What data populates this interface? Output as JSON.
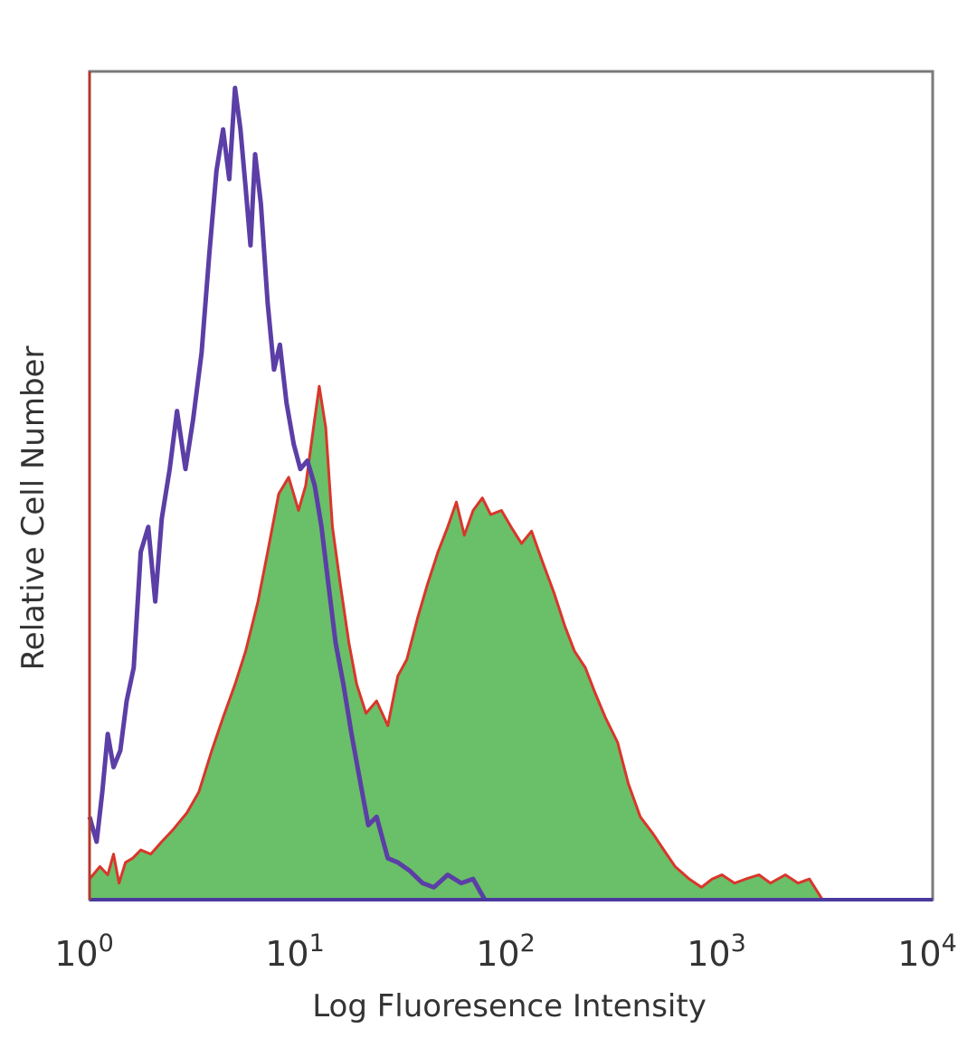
{
  "chart_data": {
    "type": "area",
    "title": "",
    "xlabel": "Log Fluoresence Intensity",
    "ylabel": "Relative Cell Number",
    "x_scale": "log",
    "xlim": [
      1,
      10000
    ],
    "ylim": [
      0,
      100
    ],
    "x_ticks": [
      {
        "base": "10",
        "exp": "0"
      },
      {
        "base": "10",
        "exp": "1"
      },
      {
        "base": "10",
        "exp": "2"
      },
      {
        "base": "10",
        "exp": "3"
      },
      {
        "base": "10",
        "exp": "4"
      }
    ],
    "grid": false,
    "legend": "none",
    "series": [
      {
        "kind": "filled",
        "fill_color": "#6abf69",
        "stroke_color": "#d9362b",
        "x": [
          1.0,
          1.12,
          1.22,
          1.3,
          1.38,
          1.48,
          1.6,
          1.75,
          1.95,
          2.2,
          2.5,
          2.9,
          3.3,
          3.8,
          4.3,
          4.9,
          5.5,
          6.3,
          7.0,
          7.9,
          8.8,
          9.8,
          10.6,
          11.4,
          12.3,
          13.2,
          14.2,
          15.5,
          17.0,
          18.5,
          20.5,
          23.0,
          26.0,
          29.0,
          32.0,
          36.0,
          40.0,
          45.0,
          50.0,
          55.0,
          60.0,
          66.0,
          73.0,
          80.0,
          90.0,
          100.0,
          112.0,
          125.0,
          140.0,
          160.0,
          180.0,
          200.0,
          225.0,
          250.0,
          280.0,
          320.0,
          360.0,
          410.0,
          470.0,
          530.0,
          600.0,
          700.0,
          800.0,
          900.0,
          1000.0,
          1150.0,
          1300.0,
          1500.0,
          1700.0,
          2000.0,
          2300.0,
          2600.0,
          3000.0
        ],
        "y": [
          2.5,
          4.0,
          3.0,
          5.5,
          2.0,
          4.5,
          5.0,
          6.0,
          5.5,
          7.0,
          8.5,
          10.5,
          13.0,
          18.0,
          22.0,
          26.0,
          30.0,
          36.0,
          42.0,
          49.0,
          51.0,
          47.0,
          50.0,
          56.0,
          62.0,
          57.0,
          45.0,
          38.0,
          31.0,
          26.0,
          22.5,
          24.0,
          21.0,
          27.0,
          29.0,
          34.0,
          38.0,
          42.0,
          45.0,
          48.0,
          44.0,
          47.0,
          48.5,
          46.5,
          47.0,
          45.0,
          43.0,
          44.5,
          41.0,
          37.0,
          33.0,
          30.0,
          28.0,
          25.0,
          22.0,
          19.0,
          14.0,
          10.0,
          8.0,
          6.0,
          4.0,
          2.5,
          1.5,
          2.5,
          3.0,
          2.0,
          2.5,
          3.0,
          2.0,
          3.0,
          2.0,
          2.5,
          0.0
        ]
      },
      {
        "kind": "outline",
        "stroke_color": "#5b3ea6",
        "x": [
          1.0,
          1.08,
          1.15,
          1.22,
          1.3,
          1.4,
          1.5,
          1.62,
          1.75,
          1.9,
          2.05,
          2.2,
          2.4,
          2.6,
          2.85,
          3.1,
          3.4,
          3.7,
          4.0,
          4.3,
          4.6,
          4.9,
          5.2,
          5.5,
          5.8,
          6.1,
          6.5,
          7.0,
          7.5,
          8.0,
          8.6,
          9.3,
          10.0,
          10.8,
          11.7,
          12.6,
          13.6,
          14.7,
          16.0,
          17.5,
          19.0,
          21.0,
          23.0,
          26.0,
          29.0,
          33.0,
          38.0,
          43.0,
          50.0,
          58.0,
          66.0,
          75.0
        ],
        "y": [
          10.0,
          7.0,
          13.0,
          20.0,
          16.0,
          18.0,
          24.0,
          28.0,
          42.0,
          45.0,
          36.0,
          46.0,
          52.0,
          59.0,
          52.0,
          58.0,
          66.0,
          78.0,
          88.0,
          93.0,
          87.0,
          98.0,
          93.0,
          86.0,
          79.0,
          90.0,
          84.0,
          72.0,
          64.0,
          67.0,
          60.0,
          55.0,
          52.0,
          53.0,
          50.0,
          45.0,
          38.0,
          31.0,
          26.0,
          20.0,
          15.0,
          9.0,
          10.0,
          5.0,
          4.5,
          3.5,
          2.0,
          1.5,
          3.0,
          2.0,
          2.5,
          0.0
        ]
      }
    ]
  }
}
